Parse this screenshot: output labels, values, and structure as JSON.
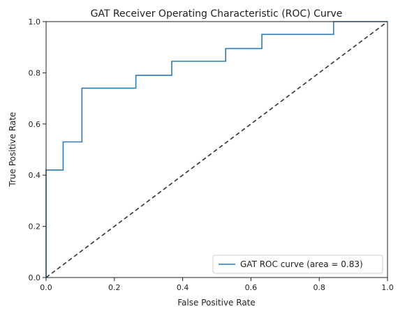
{
  "chart_data": {
    "type": "line",
    "title": "GAT Receiver Operating Characteristic (ROC) Curve",
    "xlabel": "False Positive Rate",
    "ylabel": "True Positive Rate",
    "xlim": [
      0.0,
      1.0
    ],
    "ylim": [
      0.0,
      1.0
    ],
    "xticks": [
      0.0,
      0.2,
      0.4,
      0.6,
      0.8,
      1.0
    ],
    "yticks": [
      0.0,
      0.2,
      0.4,
      0.6,
      0.8,
      1.0
    ],
    "xtick_labels": [
      "0.0",
      "0.2",
      "0.4",
      "0.6",
      "0.8",
      "1.0"
    ],
    "ytick_labels": [
      "0.0",
      "0.2",
      "0.4",
      "0.6",
      "0.8",
      "1.0"
    ],
    "grid": false,
    "legend_position": "lower-right",
    "series": [
      {
        "name": "GAT ROC curve (area = 0.83)",
        "color": "#2b7bb9",
        "line_style": "solid",
        "step": true,
        "points": [
          [
            0.0,
            0.0
          ],
          [
            0.0,
            0.42
          ],
          [
            0.05,
            0.42
          ],
          [
            0.05,
            0.53
          ],
          [
            0.105,
            0.53
          ],
          [
            0.105,
            0.74
          ],
          [
            0.263,
            0.74
          ],
          [
            0.263,
            0.79
          ],
          [
            0.368,
            0.79
          ],
          [
            0.368,
            0.845
          ],
          [
            0.526,
            0.845
          ],
          [
            0.526,
            0.895
          ],
          [
            0.632,
            0.895
          ],
          [
            0.632,
            0.95
          ],
          [
            0.842,
            0.95
          ],
          [
            0.842,
            1.0
          ],
          [
            1.0,
            1.0
          ]
        ]
      }
    ],
    "reference_line": {
      "color": "#333333",
      "line_style": "dashed",
      "points": [
        [
          0.0,
          0.0
        ],
        [
          1.0,
          1.0
        ]
      ]
    }
  }
}
